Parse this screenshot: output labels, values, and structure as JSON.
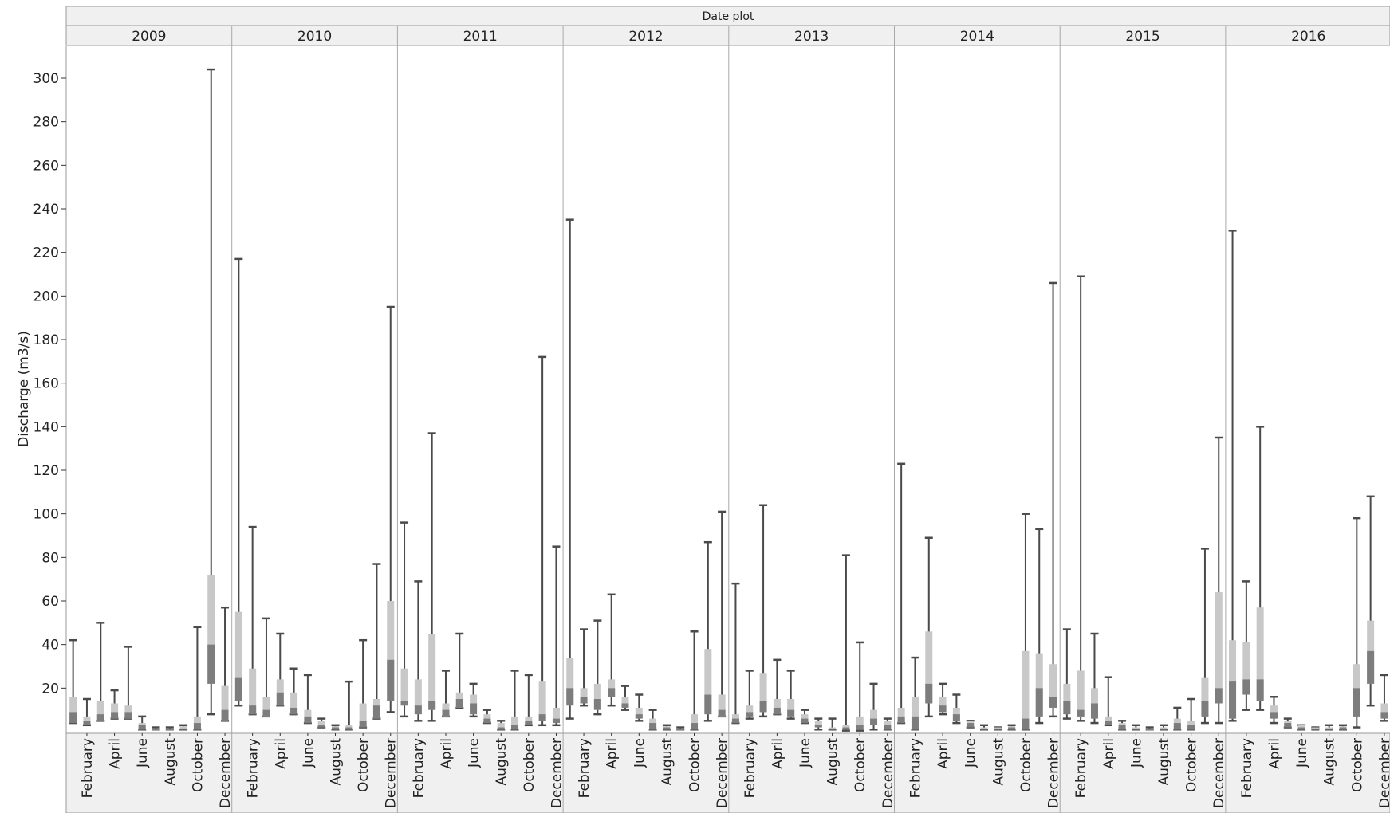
{
  "chart_data": {
    "type": "box",
    "title": "Date plot",
    "ylabel": "Discharge (m3/s)",
    "ylim": [
      0,
      300
    ],
    "yticks": [
      20,
      40,
      60,
      80,
      100,
      120,
      140,
      160,
      180,
      200,
      220,
      240,
      260,
      280,
      300
    ],
    "panel_labels": [
      "2009",
      "2010",
      "2011",
      "2012",
      "2013",
      "2014",
      "2015",
      "2016"
    ],
    "month_tick_labels": [
      "February",
      "April",
      "June",
      "August",
      "October",
      "December"
    ],
    "colors": {
      "whisker": "#4a4a4a",
      "box_outer": "#c8c8c8",
      "box_inner": "#7d7d7d",
      "grid": "#a9a9a9",
      "header_bg": "#f0f0f0",
      "border": "#9a9a9a"
    },
    "panels": [
      {
        "year": "2009",
        "months": [
          [
            4,
            42,
            16,
            9,
            4
          ],
          [
            3,
            15,
            7,
            5,
            3
          ],
          [
            5,
            50,
            14,
            8,
            5
          ],
          [
            6,
            19,
            13,
            9,
            6
          ],
          [
            6,
            39,
            12,
            9,
            6
          ],
          [
            1,
            7,
            4,
            3,
            1
          ],
          [
            1,
            2,
            1.5,
            1,
            1
          ],
          [
            1,
            2,
            1.5,
            1,
            1
          ],
          [
            1,
            3,
            2.5,
            1.5,
            1
          ],
          [
            1,
            48,
            7,
            4,
            1
          ],
          [
            8,
            304,
            72,
            40,
            22
          ],
          [
            5,
            57,
            21,
            10,
            5
          ]
        ]
      },
      {
        "year": "2010",
        "months": [
          [
            12,
            217,
            55,
            25,
            14
          ],
          [
            8,
            94,
            29,
            12,
            8
          ],
          [
            7,
            52,
            16,
            10,
            7
          ],
          [
            12,
            45,
            24,
            18,
            12
          ],
          [
            8,
            29,
            18,
            11,
            8
          ],
          [
            4,
            26,
            10,
            7,
            4
          ],
          [
            2,
            6,
            5,
            3,
            2
          ],
          [
            1,
            3,
            2.5,
            2,
            1
          ],
          [
            1,
            23,
            3,
            2,
            1
          ],
          [
            2,
            42,
            13,
            5,
            2
          ],
          [
            6,
            77,
            15,
            12,
            6
          ],
          [
            9,
            195,
            60,
            33,
            14
          ]
        ]
      },
      {
        "year": "2011",
        "months": [
          [
            7,
            96,
            29,
            14,
            12
          ],
          [
            5,
            69,
            24,
            12,
            8
          ],
          [
            5,
            137,
            45,
            14,
            10
          ],
          [
            7,
            28,
            13,
            10,
            7
          ],
          [
            11,
            45,
            18,
            15,
            11
          ],
          [
            7,
            22,
            17,
            13,
            8
          ],
          [
            4,
            10,
            8,
            6,
            4
          ],
          [
            1,
            5,
            4,
            2,
            1
          ],
          [
            1,
            28,
            7,
            3,
            1
          ],
          [
            3,
            26,
            7,
            5,
            3
          ],
          [
            3,
            172,
            23,
            8,
            5
          ],
          [
            3,
            85,
            11,
            6,
            4
          ]
        ]
      },
      {
        "year": "2012",
        "months": [
          [
            6,
            235,
            34,
            20,
            12
          ],
          [
            12,
            47,
            20,
            16,
            13
          ],
          [
            8,
            51,
            22,
            15,
            10
          ],
          [
            12,
            63,
            24,
            20,
            16
          ],
          [
            10,
            21,
            16,
            13,
            11
          ],
          [
            5,
            17,
            11,
            8,
            6
          ],
          [
            1,
            10,
            6,
            4,
            1
          ],
          [
            1,
            3,
            2.5,
            2,
            1
          ],
          [
            1,
            2,
            1.5,
            1,
            1
          ],
          [
            1,
            46,
            8,
            4,
            1
          ],
          [
            5,
            87,
            38,
            17,
            8
          ],
          [
            7,
            101,
            17,
            10,
            7
          ]
        ]
      },
      {
        "year": "2013",
        "months": [
          [
            4,
            68,
            8,
            6,
            4
          ],
          [
            6,
            28,
            12,
            9,
            7
          ],
          [
            7,
            104,
            27,
            14,
            9
          ],
          [
            8,
            33,
            15,
            11,
            8
          ],
          [
            6,
            28,
            15,
            10,
            7
          ],
          [
            4,
            10,
            8,
            6,
            4
          ],
          [
            1,
            6,
            5,
            3,
            2
          ],
          [
            1,
            6,
            2,
            1.5,
            1
          ],
          [
            0.5,
            81,
            3,
            2,
            1
          ],
          [
            0.5,
            41,
            7,
            3,
            1
          ],
          [
            1,
            22,
            10,
            6,
            3
          ],
          [
            1,
            6,
            5,
            3,
            1
          ]
        ]
      },
      {
        "year": "2014",
        "months": [
          [
            4,
            123,
            11,
            7,
            4
          ],
          [
            1,
            34,
            16,
            7,
            1
          ],
          [
            7,
            89,
            46,
            22,
            13
          ],
          [
            8,
            22,
            16,
            12,
            9
          ],
          [
            4,
            17,
            11,
            8,
            5
          ],
          [
            2,
            5,
            5,
            4,
            2
          ],
          [
            1,
            3,
            2,
            1.5,
            1
          ],
          [
            1,
            2,
            2,
            1.5,
            1
          ],
          [
            1,
            3,
            2.5,
            2,
            1
          ],
          [
            1,
            100,
            37,
            6,
            1
          ],
          [
            4,
            93,
            36,
            20,
            7
          ],
          [
            7,
            206,
            31,
            16,
            11
          ]
        ]
      },
      {
        "year": "2015",
        "months": [
          [
            6,
            47,
            22,
            14,
            8
          ],
          [
            5,
            209,
            28,
            10,
            7
          ],
          [
            4,
            45,
            20,
            13,
            6
          ],
          [
            3,
            25,
            7,
            5,
            3
          ],
          [
            1,
            5,
            4,
            3,
            1
          ],
          [
            1,
            3,
            2,
            1.5,
            1
          ],
          [
            1,
            2,
            1.5,
            1,
            1
          ],
          [
            1,
            3,
            2,
            1.5,
            1
          ],
          [
            1,
            11,
            6,
            4,
            1
          ],
          [
            1,
            15,
            5,
            3,
            1
          ],
          [
            4,
            84,
            25,
            14,
            7
          ],
          [
            4,
            135,
            64,
            20,
            13
          ]
        ]
      },
      {
        "year": "2016",
        "months": [
          [
            5,
            230,
            42,
            23,
            6
          ],
          [
            10,
            69,
            41,
            24,
            17
          ],
          [
            10,
            140,
            57,
            24,
            14
          ],
          [
            4,
            16,
            12,
            9,
            6
          ],
          [
            2,
            6,
            5,
            4,
            2
          ],
          [
            1,
            3,
            3,
            2,
            1
          ],
          [
            1,
            2,
            2,
            1.5,
            1
          ],
          [
            1,
            3,
            2,
            1.5,
            1
          ],
          [
            1,
            3,
            2.5,
            2,
            1
          ],
          [
            2,
            98,
            31,
            20,
            7
          ],
          [
            12,
            108,
            51,
            37,
            22
          ],
          [
            5,
            26,
            13,
            9,
            6
          ]
        ]
      }
    ]
  }
}
